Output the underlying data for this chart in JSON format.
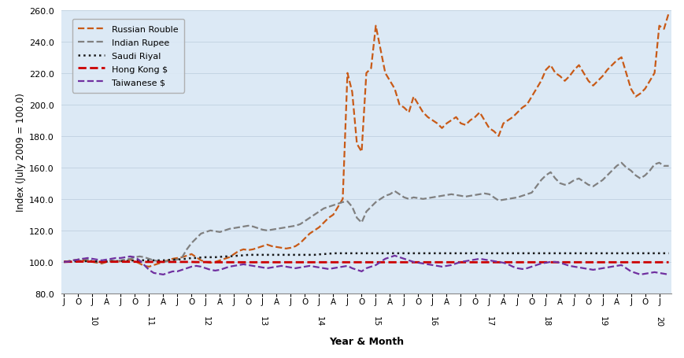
{
  "ylabel": "Index (July 2009 = 100.0)",
  "xlabel": "Year & Month",
  "ylim": [
    80.0,
    260.0
  ],
  "yticks": [
    80.0,
    100.0,
    120.0,
    140.0,
    160.0,
    180.0,
    200.0,
    220.0,
    240.0,
    260.0
  ],
  "bg_color": "#dce9f5",
  "series": {
    "Russian Rouble": {
      "color": "#c85a17",
      "linestyle": "--",
      "linewidth": 1.6,
      "values": [
        100.0,
        100.5,
        101.0,
        101.5,
        101.0,
        100.5,
        100.0,
        99.5,
        99.0,
        100.0,
        100.5,
        100.0,
        100.5,
        101.0,
        101.5,
        100.5,
        99.0,
        97.5,
        97.0,
        98.0,
        99.0,
        100.0,
        101.0,
        102.0,
        102.5,
        103.0,
        104.0,
        105.0,
        103.0,
        101.0,
        100.0,
        99.5,
        100.0,
        101.0,
        102.0,
        103.0,
        105.0,
        107.0,
        108.0,
        107.5,
        108.0,
        109.0,
        110.0,
        111.0,
        110.0,
        109.5,
        109.0,
        108.5,
        109.0,
        110.0,
        112.0,
        115.0,
        118.0,
        120.0,
        122.0,
        125.0,
        128.0,
        130.0,
        135.0,
        140.0,
        220.0,
        208.0,
        175.0,
        170.0,
        220.0,
        223.0,
        250.0,
        235.0,
        220.0,
        215.0,
        210.0,
        200.0,
        198.0,
        195.0,
        205.0,
        200.0,
        195.0,
        192.0,
        190.0,
        188.0,
        185.0,
        188.0,
        190.0,
        192.0,
        188.0,
        187.0,
        190.0,
        192.0,
        195.0,
        190.0,
        185.0,
        183.0,
        180.0,
        188.0,
        190.0,
        192.0,
        195.0,
        198.0,
        200.0,
        205.0,
        210.0,
        215.0,
        222.0,
        225.0,
        220.0,
        218.0,
        215.0,
        218.0,
        222.0,
        225.0,
        220.0,
        215.0,
        212.0,
        215.0,
        218.0,
        222.0,
        225.0,
        228.0,
        230.0,
        220.0,
        210.0,
        205.0,
        207.0,
        210.0,
        215.0,
        220.0,
        250.0,
        248.0,
        258.0
      ]
    },
    "Indian Rupee": {
      "color": "#808080",
      "linestyle": "--",
      "linewidth": 1.6,
      "values": [
        100.0,
        100.5,
        101.0,
        101.5,
        102.0,
        101.5,
        100.5,
        100.0,
        99.5,
        100.5,
        101.0,
        100.5,
        101.0,
        101.5,
        102.0,
        103.0,
        103.5,
        103.0,
        102.0,
        101.0,
        100.5,
        100.0,
        100.5,
        101.0,
        101.5,
        103.0,
        108.0,
        112.0,
        115.0,
        118.0,
        119.0,
        120.0,
        119.5,
        119.0,
        120.0,
        121.0,
        121.5,
        122.0,
        122.5,
        123.0,
        122.5,
        121.5,
        120.5,
        120.0,
        120.5,
        121.0,
        121.5,
        122.0,
        122.5,
        123.0,
        124.0,
        126.0,
        128.0,
        130.0,
        132.0,
        134.0,
        135.0,
        136.0,
        137.0,
        138.0,
        138.5,
        135.0,
        128.0,
        125.0,
        132.0,
        135.0,
        138.0,
        140.0,
        142.0,
        143.0,
        145.0,
        143.0,
        141.0,
        140.0,
        141.0,
        140.5,
        140.0,
        140.5,
        141.0,
        141.5,
        142.0,
        142.5,
        143.0,
        142.5,
        142.0,
        141.5,
        142.0,
        142.5,
        143.0,
        143.5,
        143.0,
        141.0,
        139.0,
        139.5,
        140.0,
        140.5,
        141.0,
        142.0,
        143.0,
        144.0,
        148.0,
        152.0,
        155.0,
        157.0,
        153.0,
        150.0,
        149.0,
        150.0,
        152.0,
        153.0,
        151.0,
        149.0,
        148.0,
        150.0,
        152.0,
        155.0,
        158.0,
        161.0,
        163.0,
        160.0,
        158.0,
        155.0,
        153.0,
        155.0,
        158.0,
        162.0,
        163.0,
        161.0,
        161.0
      ]
    },
    "Saudi Riyal": {
      "color": "#1a1a1a",
      "linestyle": ":",
      "linewidth": 1.8,
      "values": [
        100.0,
        100.2,
        100.3,
        100.5,
        100.5,
        100.5,
        100.5,
        100.3,
        100.0,
        100.2,
        100.3,
        100.5,
        100.5,
        100.5,
        100.8,
        101.0,
        101.2,
        101.0,
        101.0,
        101.0,
        101.0,
        101.0,
        101.2,
        101.5,
        101.5,
        101.8,
        102.0,
        102.5,
        102.5,
        102.8,
        103.0,
        103.0,
        103.0,
        103.2,
        103.5,
        103.5,
        103.8,
        104.0,
        104.2,
        104.5,
        104.5,
        104.5,
        104.5,
        104.5,
        104.5,
        104.5,
        104.5,
        104.5,
        104.5,
        104.5,
        104.5,
        104.5,
        104.5,
        104.5,
        104.8,
        105.0,
        105.2,
        105.5,
        105.5,
        105.5,
        105.5,
        105.5,
        105.5,
        105.5,
        105.5,
        105.5,
        105.5,
        105.5,
        105.5,
        105.5,
        105.5,
        105.5,
        105.5,
        105.5,
        105.5,
        105.5,
        105.5,
        105.5,
        105.5,
        105.5,
        105.5,
        105.5,
        105.5,
        105.5,
        105.5,
        105.5,
        105.5,
        105.5,
        105.5,
        105.5,
        105.5,
        105.5,
        105.5,
        105.5,
        105.5,
        105.5,
        105.5,
        105.5,
        105.5,
        105.5,
        105.5,
        105.5,
        105.5,
        105.5,
        105.5,
        105.5,
        105.5,
        105.5,
        105.5,
        105.5,
        105.5,
        105.5,
        105.5,
        105.5,
        105.5,
        105.5,
        105.5,
        105.5,
        105.5,
        105.5,
        105.5,
        105.5,
        105.5,
        105.5,
        105.5,
        105.5,
        105.5,
        105.5,
        105.5
      ]
    },
    "Hong Kong $": {
      "color": "#cc0000",
      "linestyle": "--",
      "linewidth": 2.0,
      "values": [
        100.0,
        100.1,
        100.1,
        100.2,
        100.2,
        100.2,
        100.2,
        100.1,
        100.0,
        100.1,
        100.1,
        100.1,
        100.1,
        100.1,
        100.1,
        100.1,
        100.1,
        100.0,
        100.0,
        100.0,
        100.0,
        100.0,
        100.0,
        100.0,
        100.0,
        100.0,
        100.0,
        100.0,
        99.9,
        99.9,
        99.9,
        99.9,
        99.8,
        99.8,
        99.8,
        99.8,
        99.8,
        99.8,
        99.8,
        99.8,
        99.8,
        99.8,
        99.8,
        99.8,
        99.8,
        99.8,
        99.8,
        99.8,
        99.8,
        99.8,
        99.8,
        99.8,
        99.8,
        99.8,
        99.8,
        99.8,
        99.8,
        99.8,
        99.8,
        99.8,
        99.8,
        99.8,
        99.8,
        99.8,
        99.8,
        99.8,
        99.8,
        99.8,
        99.8,
        99.8,
        99.8,
        99.8,
        99.8,
        99.8,
        99.8,
        99.8,
        99.8,
        99.8,
        99.8,
        99.8,
        99.8,
        99.8,
        99.8,
        99.8,
        99.8,
        99.8,
        99.8,
        99.8,
        99.8,
        99.8,
        99.8,
        99.8,
        99.8,
        99.8,
        99.8,
        99.8,
        99.8,
        99.8,
        99.8,
        99.8,
        99.8,
        99.8,
        99.8,
        99.8,
        99.8,
        99.8,
        99.8,
        99.8,
        99.8,
        99.8,
        99.8,
        99.8,
        99.8,
        99.8,
        99.8,
        99.8,
        99.8,
        99.8,
        99.8,
        99.8,
        99.8,
        99.8,
        99.8,
        99.8,
        99.8,
        99.8,
        99.8,
        99.8,
        99.8
      ]
    },
    "Taiwanese $": {
      "color": "#7030a0",
      "linestyle": "--",
      "linewidth": 1.6,
      "values": [
        100.0,
        100.2,
        101.0,
        101.5,
        102.0,
        102.5,
        102.0,
        101.5,
        101.0,
        101.5,
        102.0,
        102.5,
        102.5,
        103.0,
        103.5,
        103.0,
        101.0,
        98.0,
        95.0,
        93.0,
        92.5,
        92.0,
        93.0,
        94.0,
        94.0,
        95.0,
        96.0,
        97.0,
        97.5,
        97.0,
        96.0,
        95.0,
        94.5,
        95.0,
        96.0,
        97.0,
        97.5,
        98.0,
        98.5,
        98.0,
        97.5,
        97.0,
        96.5,
        96.0,
        96.5,
        97.0,
        97.5,
        97.0,
        96.5,
        96.0,
        96.5,
        97.0,
        97.5,
        97.0,
        96.5,
        96.0,
        95.5,
        96.0,
        96.5,
        97.0,
        97.5,
        96.0,
        95.0,
        94.0,
        96.0,
        97.0,
        98.0,
        100.0,
        102.0,
        103.0,
        104.0,
        103.0,
        102.0,
        101.0,
        100.0,
        99.5,
        99.0,
        98.5,
        98.0,
        97.5,
        97.0,
        97.5,
        98.0,
        99.0,
        100.0,
        100.5,
        101.0,
        101.5,
        102.0,
        101.5,
        101.0,
        100.5,
        100.0,
        99.5,
        98.5,
        97.0,
        96.0,
        95.5,
        96.0,
        97.0,
        98.0,
        99.0,
        99.5,
        100.0,
        100.0,
        99.5,
        98.5,
        97.5,
        97.0,
        96.5,
        96.0,
        95.5,
        95.0,
        95.5,
        96.0,
        96.5,
        97.0,
        97.5,
        98.0,
        96.0,
        94.0,
        93.0,
        92.0,
        92.5,
        93.0,
        93.5,
        93.0,
        92.5,
        92.0
      ]
    }
  },
  "month_cycle": [
    "J",
    "O",
    "J",
    "A"
  ],
  "year_tick_stride": 12,
  "year_labels": [
    "10",
    "11",
    "12",
    "13",
    "14",
    "15",
    "16",
    "17",
    "18",
    "19",
    "20"
  ],
  "legend_names": [
    "Russian Rouble",
    "Indian Rupee",
    "Saudi Riyal",
    "Hong Kong $",
    "Taiwanese $"
  ]
}
